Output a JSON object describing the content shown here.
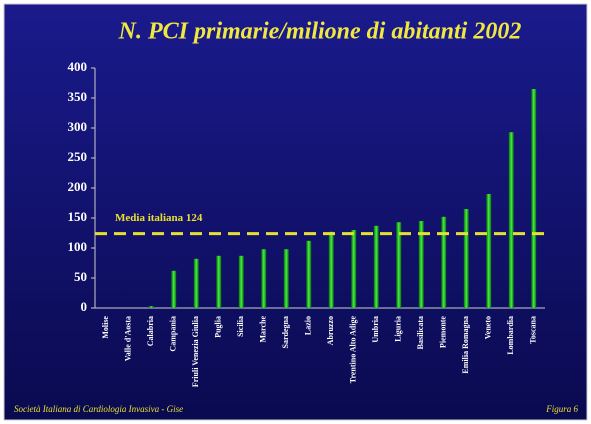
{
  "chart_data": {
    "type": "bar",
    "title": "N. PCI primarie/milione di abitanti 2002",
    "categories": [
      "Molise",
      "Valle d'Aosta",
      "Calabria",
      "Campania",
      "Friuli Venezia Giulia",
      "Puglia",
      "Sicilia",
      "Marche",
      "Sardegna",
      "Lazio",
      "Abruzzo",
      "Trentino Alto Adige",
      "Umbria",
      "Liguria",
      "Basilicata",
      "Piemonte",
      "Emilia Romagna",
      "Veneto",
      "Lombardia",
      "Toscana"
    ],
    "values": [
      0,
      0,
      3,
      62,
      82,
      87,
      87,
      98,
      98,
      112,
      127,
      130,
      137,
      143,
      145,
      152,
      165,
      190,
      293,
      365
    ],
    "color": "#22cc22",
    "ylim": [
      0,
      400
    ],
    "yticks": [
      0,
      50,
      100,
      150,
      200,
      250,
      300,
      350,
      400
    ],
    "reference_line": {
      "value": 124,
      "label": "Media italiana 124",
      "color": "#e8e030"
    },
    "footer_left": "Società Italiana di Cardiologia Invasiva - Gise",
    "footer_right": "Figura 6"
  }
}
